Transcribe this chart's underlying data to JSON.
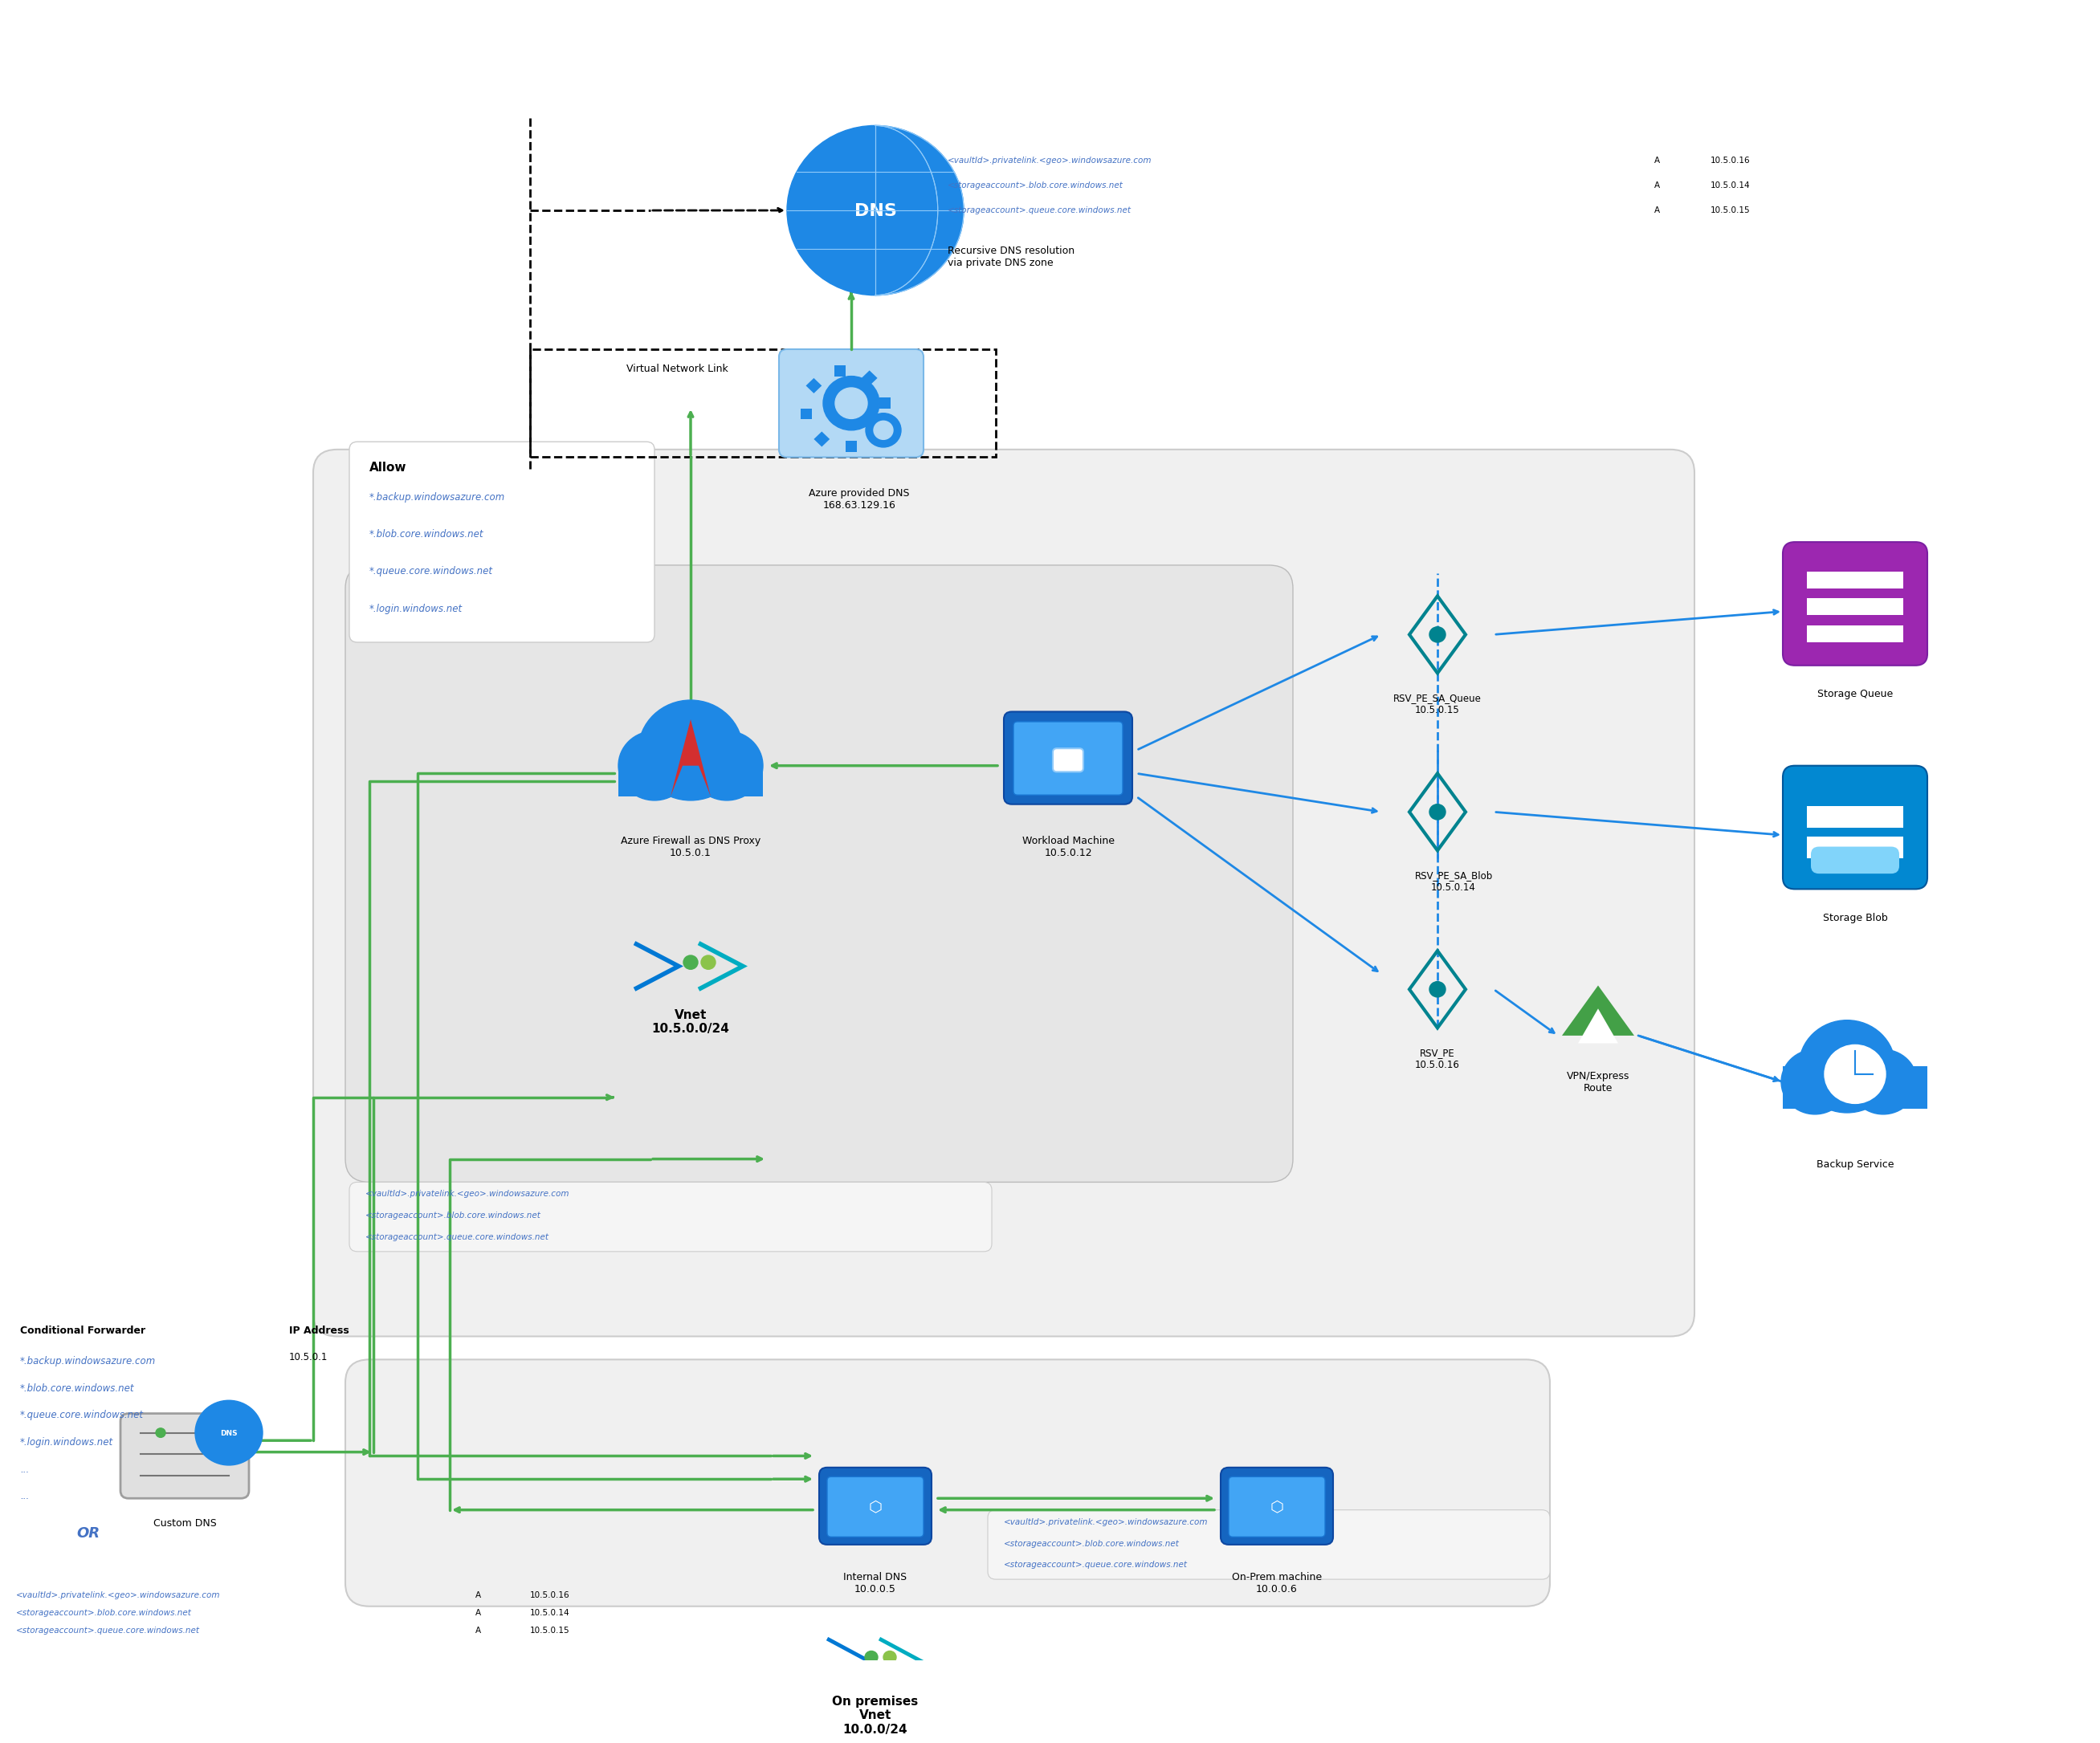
{
  "bg_color": "#ffffff",
  "light_gray": "#e8e8e8",
  "medium_gray": "#d0d0d0",
  "blue_link": "#4472c4",
  "green_arrow": "#4CAF50",
  "dark_green": "#388E3C",
  "dns_blue": "#1e88e5",
  "azure_blue": "#0078d4",
  "teal": "#00ACC1",
  "title_fontsize": 11,
  "label_fontsize": 9,
  "small_fontsize": 7.5,
  "top_dns_record_lines": [
    "<vaultId>.privatelink.<geo>.windowsazure.com    A    10.5.0.16",
    "<storageaccount>.blob.core.windows.net           A    10.5.0.14",
    "<storageaccount>.queue.core.windows.net          A    10.5.0.15"
  ],
  "allow_label": "Allow",
  "allow_items": [
    "*.backup.windowsazure.com",
    "*.blob.core.windows.net",
    "*.queue.core.windows.net",
    "*.login.windows.net"
  ],
  "azure_dns_label": "Azure provided DNS\n168.63.129.16",
  "vnet_label": "Vnet\n10.5.0.0/24",
  "firewall_label": "Azure Firewall as DNS Proxy\n10.5.0.1",
  "workload_label": "Workload Machine\n10.5.0.12",
  "rsv_pe_sa_queue_label": "RSV_PE_SA_Queue\n10.5.0.15",
  "rsv_pe_sa_blob_label": "RSV_PE_SA_Blob\n10.5.0.14",
  "rsv_pe_label": "RSV_PE\n10.5.0.16",
  "storage_queue_label": "Storage Queue",
  "storage_blob_label": "Storage Blob",
  "vpn_label": "VPN/Express\nRoute",
  "backup_label": "Backup Service",
  "recursive_label": "Recursive DNS resolution\nvia private DNS zone",
  "virtual_network_link_label": "Virtual Network Link",
  "internal_dns_label": "Internal DNS\n10.0.0.5",
  "on_prem_machine_label": "On-Prem machine\n10.0.0.6",
  "on_prem_vnet_label": "On premises\nVnet\n10.0.0/24",
  "custom_dns_label": "Custom DNS",
  "conditional_forwarder_label": "Conditional Forwarder",
  "ip_address_label": "IP Address",
  "ip_value": "10.5.0.1",
  "cf_items": [
    "*.backup.windowsazure.com",
    "*.blob.core.windows.net",
    "*.queue.core.windows.net",
    "*.login.windows.net",
    "...",
    "..."
  ],
  "middle_dns_records": [
    "<vaultId>.privatelink.<geo>.windowsazure.com",
    "<storageaccount>.blob.core.windows.net",
    "<storageaccount>.queue.core.windows.net"
  ],
  "bottom_dns_records_left": [
    "<vaultId>.privatelink.<geo>.windowsazure.com",
    "<storageaccount>.blob.core.windows.net",
    "<storageaccount>.queue.core.windows.net"
  ],
  "bottom_dns_records_right": [
    "<vaultId>.privatelink.<geo>.windowsazure.com",
    "<storageaccount>.blob.core.windows.net",
    "<storageaccount>.queue.core.windows.net"
  ],
  "bottom_table_left": [
    "<vaultId>.privatelink.<geo>.windowsazure.com",
    "<storageaccount>.blob.core.windows.net",
    "<storageaccount>.queue.core.windows.net"
  ],
  "bottom_table_A": [
    "A",
    "A",
    "A"
  ],
  "bottom_table_ip": [
    "10.5.0.16",
    "10.5.0.14",
    "10.5.0.15"
  ],
  "or_label": "OR"
}
